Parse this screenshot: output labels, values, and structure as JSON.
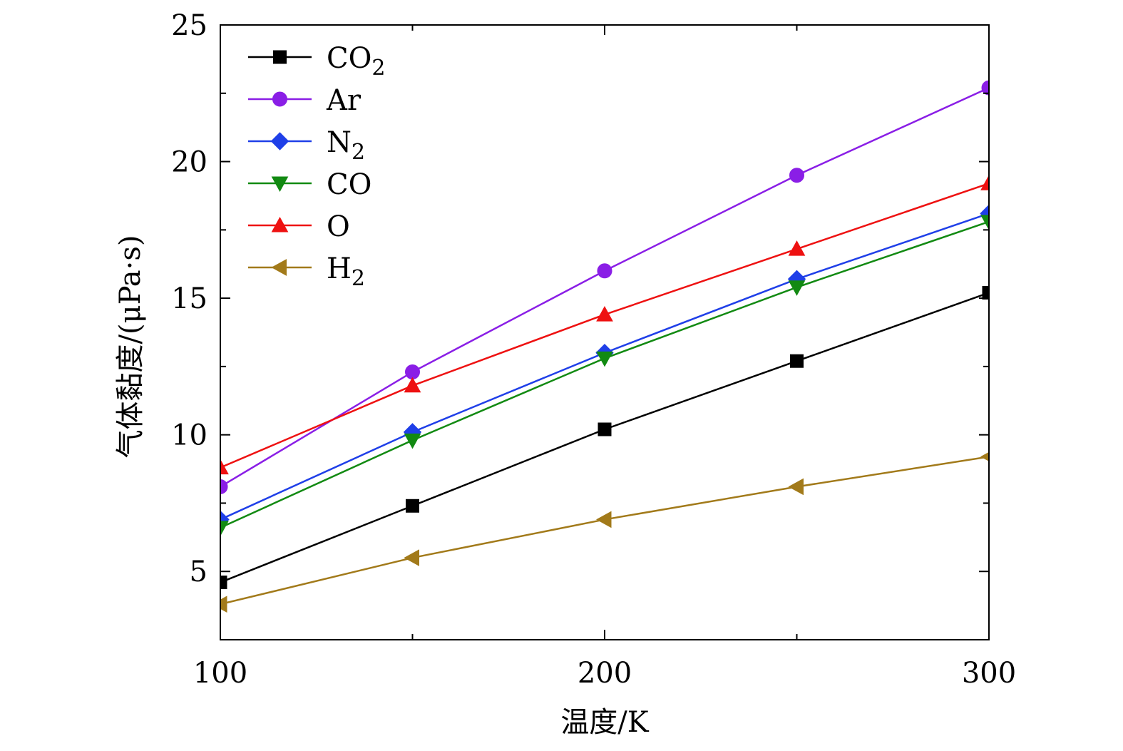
{
  "chart_data": {
    "type": "line",
    "xlabel": "温度/K",
    "ylabel": "气体黏度/(μPa·s)",
    "xlim": [
      100,
      300
    ],
    "ylim": [
      2.5,
      25
    ],
    "xticks": [
      100,
      200,
      300
    ],
    "yticks": [
      5,
      10,
      15,
      20,
      25
    ],
    "legend_position": "top-left",
    "grid": false,
    "x": [
      100,
      150,
      200,
      250,
      300
    ],
    "series": [
      {
        "name": "CO",
        "sub": "2",
        "color": "#000000",
        "marker": "square",
        "values": [
          4.6,
          7.4,
          10.2,
          12.7,
          15.2
        ]
      },
      {
        "name": "Ar",
        "sub": "",
        "color": "#8a1ee6",
        "marker": "circle",
        "values": [
          8.1,
          12.3,
          16.0,
          19.5,
          22.7
        ]
      },
      {
        "name": "N",
        "sub": "2",
        "color": "#1f3fe8",
        "marker": "diamond",
        "values": [
          6.9,
          10.1,
          13.0,
          15.7,
          18.1
        ]
      },
      {
        "name": "CO",
        "sub": "",
        "color": "#128a12",
        "marker": "triangle-down",
        "values": [
          6.6,
          9.8,
          12.8,
          15.4,
          17.8
        ]
      },
      {
        "name": "O",
        "sub": "",
        "color": "#ee1111",
        "marker": "triangle-up",
        "values": [
          8.8,
          11.8,
          14.4,
          16.8,
          19.2
        ]
      },
      {
        "name": "H",
        "sub": "2",
        "color": "#a27a1a",
        "marker": "triangle-left",
        "values": [
          3.8,
          5.5,
          6.9,
          8.1,
          9.2
        ]
      }
    ]
  }
}
